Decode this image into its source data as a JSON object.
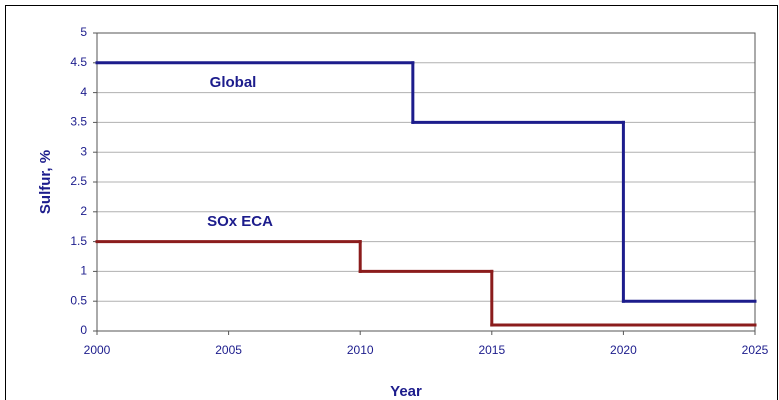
{
  "chart_data": {
    "type": "line",
    "step": "post",
    "xlabel": "Year",
    "ylabel": "Sulfur, %",
    "annotations": [
      "Global",
      "SOx ECA"
    ],
    "series": [
      {
        "name": "Global",
        "color": "#1c1c8c",
        "x": [
          2000,
          2012,
          2020,
          2025
        ],
        "values": [
          4.5,
          3.5,
          0.5,
          0.5
        ]
      },
      {
        "name": "SOx ECA",
        "color": "#8b1c1c",
        "x": [
          2000,
          2010,
          2015,
          2025
        ],
        "values": [
          1.5,
          1,
          0.1,
          0.1
        ]
      }
    ],
    "xlim": [
      2000,
      2025
    ],
    "xticks": [
      2000,
      2005,
      2010,
      2015,
      2020,
      2025
    ],
    "ylim": [
      0,
      5
    ],
    "yticks": [
      0,
      0.5,
      1,
      1.5,
      2,
      2.5,
      3,
      3.5,
      4,
      4.5,
      5
    ],
    "grid": true
  }
}
